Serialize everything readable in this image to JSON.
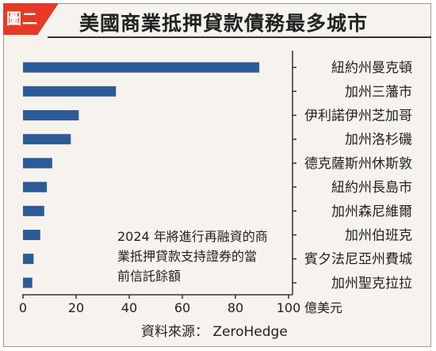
{
  "tag": "圖二",
  "chart_data": {
    "type": "bar",
    "orientation": "horizontal",
    "title": "美國商業抵押貸款債務最多城市",
    "categories": [
      "紐約州曼克頓",
      "加州三藩市",
      "伊利諾伊州芝加哥",
      "加州洛杉磯",
      "德克薩斯州休斯敦",
      "紐約州長島市",
      "加州森尼維爾",
      "加州伯班克",
      "賓夕法尼亞州費城",
      "加州聖克拉拉"
    ],
    "values": [
      89,
      35,
      21,
      18,
      11,
      9,
      8,
      6.5,
      4,
      3.5
    ],
    "xlim": [
      0,
      100
    ],
    "xticks": [
      "0",
      "20",
      "40",
      "60",
      "80",
      "100"
    ],
    "xlabel": "億美元",
    "annotation": [
      "2024 年將進行再融資的商",
      "業抵押貸款支持證券的當",
      "前信託餘額"
    ],
    "source": "資料來源： ZeroHedge",
    "bar_color": "#2d5b99",
    "tag_color": "#e63a25",
    "legend": "none",
    "grid": false
  }
}
